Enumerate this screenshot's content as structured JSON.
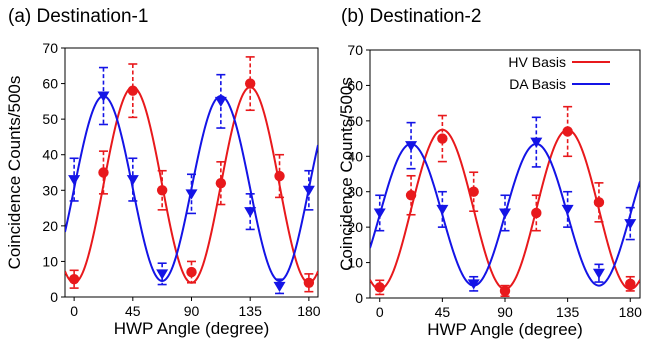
{
  "chart_data": [
    {
      "type": "scatter",
      "panel_title": "(a) Destination-1",
      "xlabel": "HWP Angle (degree)",
      "ylabel": "Coincidence Counts/500s",
      "xlim": [
        -7,
        187
      ],
      "ylim": [
        0,
        70
      ],
      "xticks": [
        "0",
        "45",
        "90",
        "135",
        "180"
      ],
      "yticks": [
        "0",
        "10",
        "20",
        "30",
        "40",
        "50",
        "60",
        "70"
      ],
      "grid": false,
      "legend": null,
      "series": [
        {
          "color": "#e8191c",
          "marker": "circle",
          "fit_curve": {
            "type": "sinusoid",
            "period": 90,
            "mean": 31.5,
            "amplitude": 27.5,
            "peak_x": 45
          },
          "points": [
            {
              "x": 0,
              "y": 5,
              "err": 2.5
            },
            {
              "x": 22.5,
              "y": 35,
              "err": 6
            },
            {
              "x": 45,
              "y": 58,
              "err": 7.5
            },
            {
              "x": 67.5,
              "y": 30,
              "err": 5.5
            },
            {
              "x": 90,
              "y": 7,
              "err": 3
            },
            {
              "x": 112.5,
              "y": 32,
              "err": 6
            },
            {
              "x": 135,
              "y": 60,
              "err": 7.5
            },
            {
              "x": 157.5,
              "y": 34,
              "err": 6
            },
            {
              "x": 180,
              "y": 4,
              "err": 2.5
            }
          ]
        },
        {
          "color": "#1414e6",
          "marker": "triangle-down",
          "fit_curve": {
            "type": "sinusoid",
            "period": 90,
            "mean": 30.5,
            "amplitude": 26,
            "peak_x": 22.5
          },
          "points": [
            {
              "x": 0,
              "y": 33,
              "err": 6
            },
            {
              "x": 22.5,
              "y": 56.5,
              "err": 8
            },
            {
              "x": 45,
              "y": 33,
              "err": 6
            },
            {
              "x": 67.5,
              "y": 6.5,
              "err": 3
            },
            {
              "x": 90,
              "y": 29,
              "err": 5.5
            },
            {
              "x": 112.5,
              "y": 55,
              "err": 7.5
            },
            {
              "x": 135,
              "y": 24,
              "err": 5
            },
            {
              "x": 157.5,
              "y": 3,
              "err": 2
            },
            {
              "x": 180,
              "y": 30,
              "err": 5.5
            }
          ]
        }
      ]
    },
    {
      "type": "scatter",
      "panel_title": "(b) Destination-2",
      "xlabel": "HWP Angle (degree)",
      "ylabel": "Coincidence Counts/500s",
      "xlim": [
        -7,
        187
      ],
      "ylim": [
        0,
        70
      ],
      "xticks": [
        "0",
        "45",
        "90",
        "135",
        "180"
      ],
      "yticks": [
        "0",
        "10",
        "20",
        "30",
        "40",
        "50",
        "60",
        "70"
      ],
      "grid": false,
      "legend": {
        "placement": "top-right",
        "entries": [
          "HV Basis",
          "DA Basis"
        ]
      },
      "series": [
        {
          "name": "HV Basis",
          "color": "#e8191c",
          "marker": "circle",
          "fit_curve": {
            "type": "sinusoid",
            "period": 90,
            "mean": 25,
            "amplitude": 22.5,
            "peak_x": 45
          },
          "points": [
            {
              "x": 0,
              "y": 3,
              "err": 2
            },
            {
              "x": 22.5,
              "y": 29,
              "err": 5.5
            },
            {
              "x": 45,
              "y": 45,
              "err": 6.5
            },
            {
              "x": 67.5,
              "y": 30,
              "err": 5.5
            },
            {
              "x": 90,
              "y": 2,
              "err": 1.5
            },
            {
              "x": 112.5,
              "y": 24,
              "err": 5
            },
            {
              "x": 135,
              "y": 47,
              "err": 7
            },
            {
              "x": 157.5,
              "y": 27,
              "err": 5.5
            },
            {
              "x": 180,
              "y": 4,
              "err": 2
            }
          ]
        },
        {
          "name": "DA Basis",
          "color": "#1414e6",
          "marker": "triangle-down",
          "fit_curve": {
            "type": "sinusoid",
            "period": 90,
            "mean": 23.5,
            "amplitude": 20,
            "peak_x": 22.5
          },
          "points": [
            {
              "x": 0,
              "y": 24,
              "err": 5
            },
            {
              "x": 22.5,
              "y": 43,
              "err": 6.5
            },
            {
              "x": 45,
              "y": 25,
              "err": 5
            },
            {
              "x": 67.5,
              "y": 4,
              "err": 2
            },
            {
              "x": 90,
              "y": 24,
              "err": 5
            },
            {
              "x": 112.5,
              "y": 44,
              "err": 7
            },
            {
              "x": 135,
              "y": 25,
              "err": 5
            },
            {
              "x": 157.5,
              "y": 7,
              "err": 2.5
            },
            {
              "x": 180,
              "y": 21,
              "err": 4.5
            }
          ]
        }
      ]
    }
  ]
}
